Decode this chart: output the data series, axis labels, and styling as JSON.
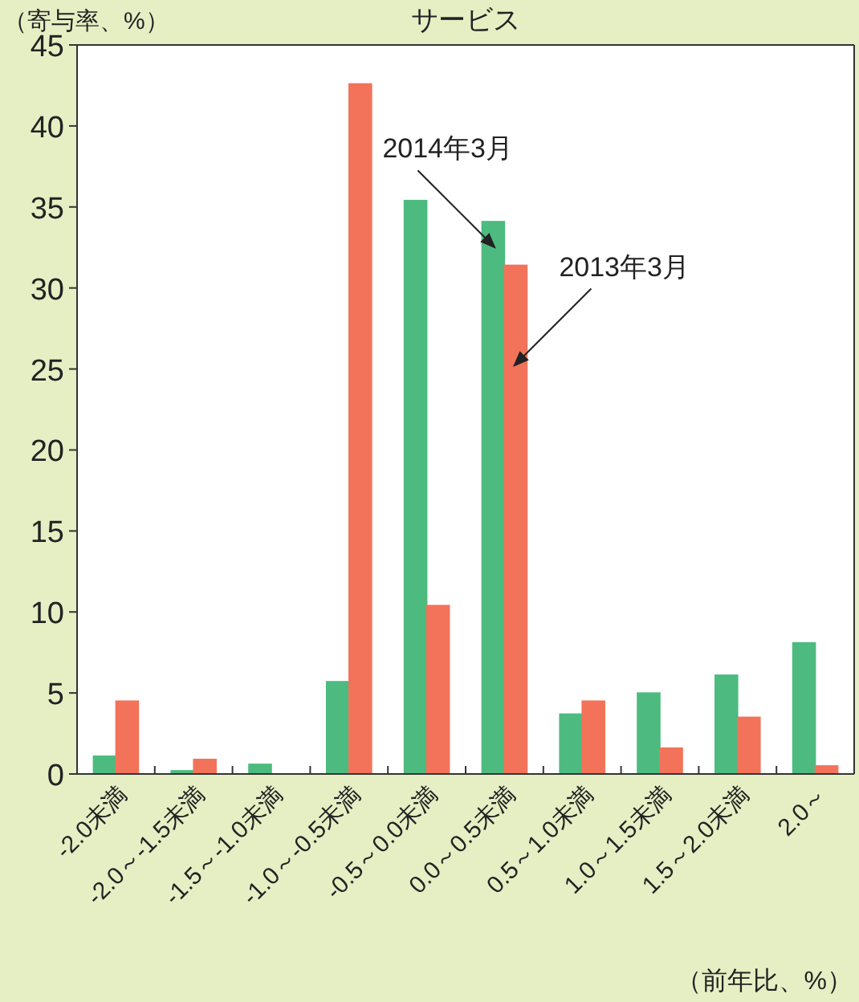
{
  "chart_data": {
    "type": "bar",
    "title": "サービス",
    "ylabel": "（寄与率、%）",
    "xlabel": "（前年比、%）",
    "categories": [
      "-2.0未満",
      "-2.0～-1.5未満",
      "-1.5～-1.0未満",
      "-1.0～-0.5未満",
      "-0.5～0.0未満",
      "0.0～0.5未満",
      "0.5～1.0未満",
      "1.0～1.5未満",
      "1.5～2.0未満",
      "2.0～"
    ],
    "series": [
      {
        "name": "2014年3月",
        "color": "#4dbb7f",
        "values": [
          1.1,
          0.2,
          0.6,
          5.7,
          35.4,
          34.1,
          3.7,
          5.0,
          6.1,
          8.1
        ]
      },
      {
        "name": "2013年3月",
        "color": "#f2735a",
        "values": [
          4.5,
          0.9,
          0,
          42.6,
          10.4,
          31.4,
          4.5,
          1.6,
          3.5,
          0.5
        ]
      }
    ],
    "ylim": [
      0,
      45
    ],
    "yticks": [
      0,
      5,
      10,
      15,
      20,
      25,
      30,
      35,
      40,
      45
    ],
    "grid": false
  }
}
